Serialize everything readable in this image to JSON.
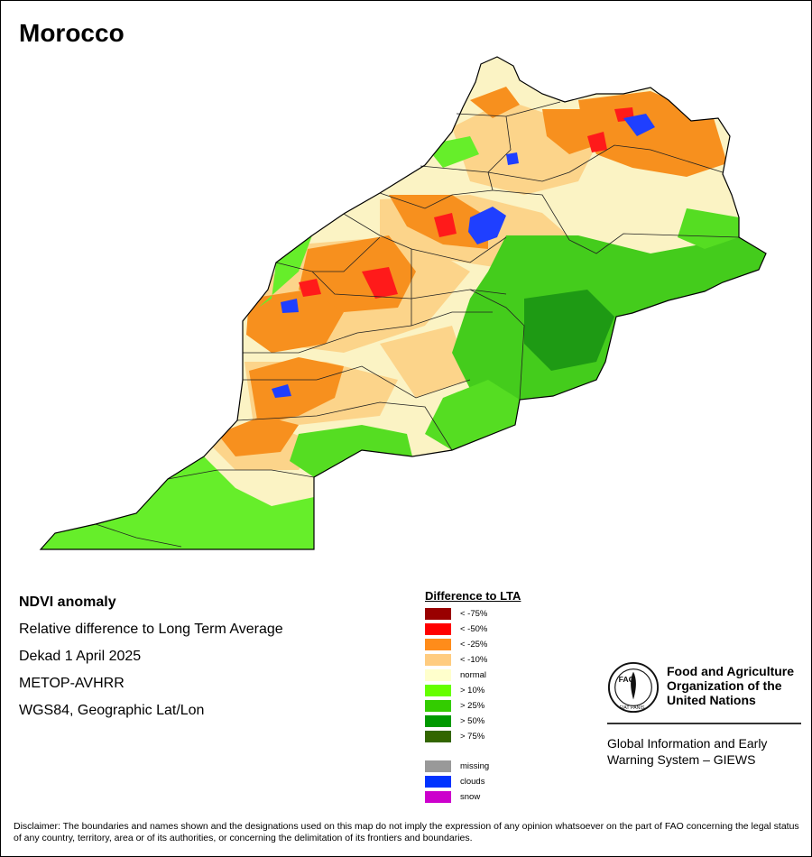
{
  "map": {
    "title": "Morocco"
  },
  "info": {
    "lines": [
      "NDVI anomaly",
      "Relative difference to Long Term Average",
      "Dekad 1 April 2025",
      "METOP-AVHRR",
      "WGS84, Geographic Lat/Lon"
    ]
  },
  "legend": {
    "title": "Difference to LTA",
    "classes": [
      {
        "label": "< -75%",
        "color": "#990000"
      },
      {
        "label": "< -50%",
        "color": "#ff0000"
      },
      {
        "label": "< -25%",
        "color": "#ff8c1a"
      },
      {
        "label": "< -10%",
        "color": "#ffcc80"
      },
      {
        "label": "normal",
        "color": "#ffffcc"
      },
      {
        "label": "> 10%",
        "color": "#66ff00"
      },
      {
        "label": "> 25%",
        "color": "#33cc00"
      },
      {
        "label": "> 50%",
        "color": "#009900"
      },
      {
        "label": "> 75%",
        "color": "#336600"
      }
    ],
    "other": [
      {
        "label": "missing",
        "color": "#999999"
      },
      {
        "label": "clouds",
        "color": "#0033ff"
      },
      {
        "label": "snow",
        "color": "#cc00cc"
      }
    ]
  },
  "fao": {
    "name": "Food and Agriculture Organization of the United Nations",
    "logo_text": "FAO",
    "logo_motto": "FIAT PANIS",
    "system": "Global Information and Early Warning System – GIEWS"
  },
  "disclaimer": "Disclaimer: The boundaries and names shown and the designations used on this map do not imply the expression of any opinion whatsoever on the part of FAO concerning the legal status of any country, territory, area or of its authorities, or concerning the delimitation of its frontiers and boundaries."
}
